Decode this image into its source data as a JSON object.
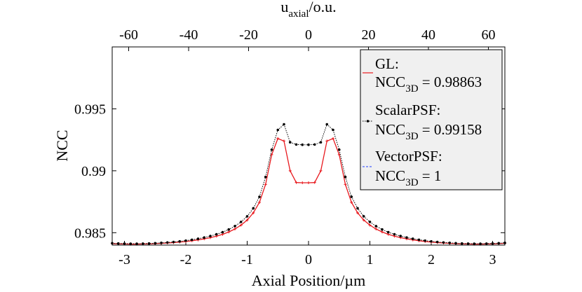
{
  "chart_data": {
    "type": "line",
    "title": "",
    "xlabel": "Axial Position/µm",
    "ylabel": "NCC",
    "top_xlabel": "u",
    "top_xlabel_sub": "axial",
    "top_xlabel_suffix": "/o.u.",
    "xlim": [
      -3.2,
      3.2
    ],
    "ylim": [
      0.984,
      1.0
    ],
    "top_xlim": [
      -65.5,
      65.5
    ],
    "xticks": [
      -3,
      -2,
      -1,
      0,
      1,
      2,
      3
    ],
    "xtick_labels": [
      "-3",
      "-2",
      "-1",
      "0",
      "1",
      "2",
      "3"
    ],
    "yticks": [
      0.985,
      0.99,
      0.995
    ],
    "ytick_labels": [
      "0.985",
      "0.99",
      "0.995"
    ],
    "top_xticks": [
      -60,
      -40,
      -20,
      0,
      20,
      40,
      60
    ],
    "top_xtick_labels": [
      "-60",
      "-40",
      "-20",
      "0",
      "20",
      "40",
      "60"
    ],
    "legend_position": "top-right",
    "series": [
      {
        "name": "GL",
        "label_name": "GL:",
        "label_ncc": "NCC",
        "label_sub": "3D",
        "label_value": " = 0.98863",
        "color": "#e8191e",
        "marker": "plus",
        "x": [
          -3.2,
          -3.1,
          -3.0,
          -2.9,
          -2.8,
          -2.7,
          -2.6,
          -2.5,
          -2.4,
          -2.3,
          -2.2,
          -2.1,
          -2.0,
          -1.9,
          -1.8,
          -1.7,
          -1.6,
          -1.5,
          -1.4,
          -1.3,
          -1.2,
          -1.1,
          -1.0,
          -0.9,
          -0.8,
          -0.7,
          -0.6,
          -0.5,
          -0.4,
          -0.3,
          -0.2,
          -0.1,
          0.0,
          0.1,
          0.2,
          0.3,
          0.4,
          0.5,
          0.6,
          0.7,
          0.8,
          0.9,
          1.0,
          1.1,
          1.2,
          1.3,
          1.4,
          1.5,
          1.6,
          1.7,
          1.8,
          1.9,
          2.0,
          2.1,
          2.2,
          2.3,
          2.4,
          2.5,
          2.6,
          2.7,
          2.8,
          2.9,
          3.0,
          3.1,
          3.2
        ],
        "values": [
          0.98412,
          0.9841,
          0.98409,
          0.98408,
          0.98408,
          0.98409,
          0.9841,
          0.98412,
          0.98414,
          0.98417,
          0.9842,
          0.98424,
          0.98429,
          0.98435,
          0.98442,
          0.9845,
          0.9846,
          0.98472,
          0.98487,
          0.98506,
          0.9853,
          0.98561,
          0.98602,
          0.9866,
          0.98745,
          0.9889,
          0.9913,
          0.9926,
          0.9924,
          0.99,
          0.98905,
          0.98903,
          0.98903,
          0.98905,
          0.99,
          0.9924,
          0.9926,
          0.9913,
          0.9889,
          0.98745,
          0.9866,
          0.98602,
          0.98561,
          0.9853,
          0.98506,
          0.98487,
          0.98472,
          0.9846,
          0.9845,
          0.98442,
          0.98435,
          0.98429,
          0.98424,
          0.9842,
          0.98417,
          0.98414,
          0.98412,
          0.9841,
          0.98409,
          0.98408,
          0.98408,
          0.98409,
          0.9841,
          0.98412,
          0.98414
        ]
      },
      {
        "name": "ScalarPSF",
        "label_name": "ScalarPSF:",
        "label_ncc": "NCC",
        "label_sub": "3D",
        "label_value": " = 0.99158",
        "color": "#000000",
        "marker": "dot",
        "x": [
          -3.2,
          -3.1,
          -3.0,
          -2.9,
          -2.8,
          -2.7,
          -2.6,
          -2.5,
          -2.4,
          -2.3,
          -2.2,
          -2.1,
          -2.0,
          -1.9,
          -1.8,
          -1.7,
          -1.6,
          -1.5,
          -1.4,
          -1.3,
          -1.2,
          -1.1,
          -1.0,
          -0.9,
          -0.8,
          -0.7,
          -0.6,
          -0.5,
          -0.4,
          -0.3,
          -0.2,
          -0.1,
          0.0,
          0.1,
          0.2,
          0.3,
          0.4,
          0.5,
          0.6,
          0.7,
          0.8,
          0.9,
          1.0,
          1.1,
          1.2,
          1.3,
          1.4,
          1.5,
          1.6,
          1.7,
          1.8,
          1.9,
          2.0,
          2.1,
          2.2,
          2.3,
          2.4,
          2.5,
          2.6,
          2.7,
          2.8,
          2.9,
          3.0,
          3.1,
          3.2
        ],
        "values": [
          0.98415,
          0.98413,
          0.98412,
          0.98411,
          0.98411,
          0.98412,
          0.98413,
          0.98415,
          0.98418,
          0.98421,
          0.98425,
          0.9843,
          0.98436,
          0.98443,
          0.98451,
          0.98461,
          0.98473,
          0.98487,
          0.98504,
          0.98526,
          0.98553,
          0.98587,
          0.98632,
          0.98697,
          0.9879,
          0.9895,
          0.9917,
          0.9933,
          0.99375,
          0.9923,
          0.99212,
          0.9921,
          0.9921,
          0.99212,
          0.9923,
          0.99375,
          0.9933,
          0.9917,
          0.9895,
          0.9879,
          0.98697,
          0.98632,
          0.98587,
          0.98553,
          0.98526,
          0.98504,
          0.98487,
          0.98473,
          0.98461,
          0.98451,
          0.98443,
          0.98436,
          0.9843,
          0.98425,
          0.98421,
          0.98418,
          0.98415,
          0.98413,
          0.98412,
          0.98411,
          0.98411,
          0.98412,
          0.98413,
          0.98415,
          0.98418
        ]
      },
      {
        "name": "VectorPSF",
        "label_name": "VectorPSF:",
        "label_ncc": "NCC",
        "label_sub": "3D",
        "label_value": " = 1",
        "color": "#1f3fff",
        "marker": "none",
        "x": [
          -3.2,
          3.2
        ],
        "values": [
          1.0,
          1.0
        ]
      }
    ]
  }
}
